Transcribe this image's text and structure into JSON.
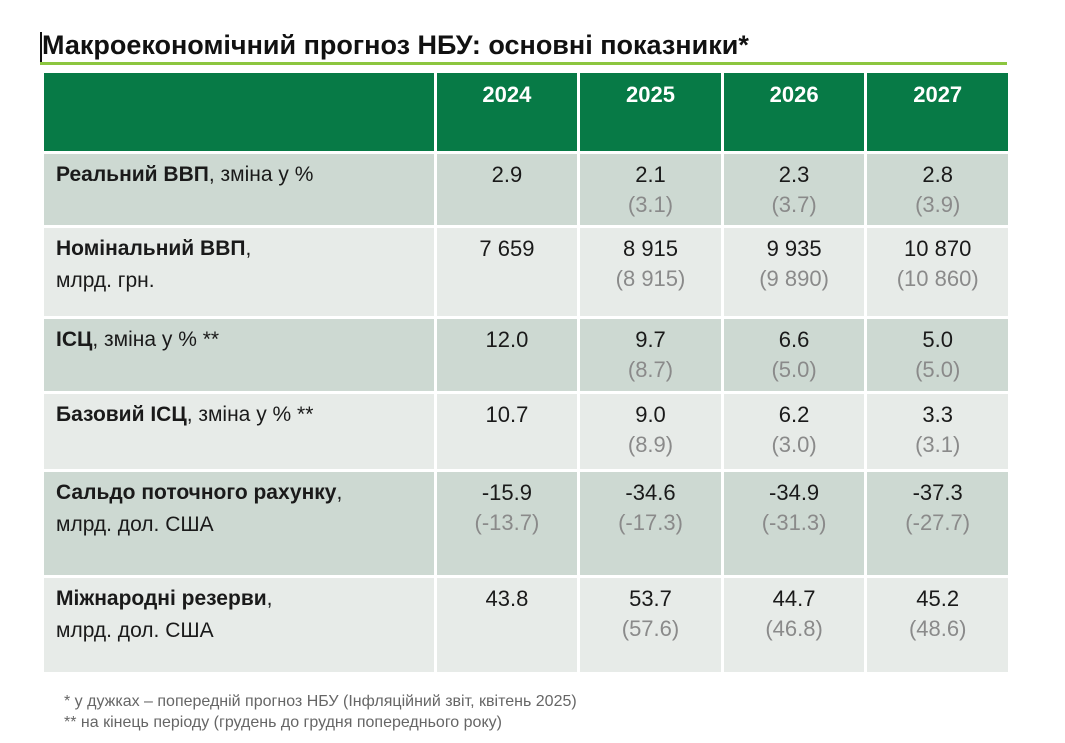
{
  "title": "Макроекономічний прогноз НБУ: основні показники*",
  "colors": {
    "header_bg": "#077a46",
    "underline": "#8cc63f",
    "row_dark": "#cdd9d2",
    "row_light": "#e7ebe8",
    "prev_text": "#8a8a8a"
  },
  "header": {
    "corner": "",
    "years": [
      "2024",
      "2025",
      "2026",
      "2027"
    ]
  },
  "rows": [
    {
      "label_bold": "Реальний ВВП",
      "label_rest": ", зміна у %",
      "label_line2": "",
      "cells": [
        {
          "main": "2.9",
          "prev": ""
        },
        {
          "main": "2.1",
          "prev": "(3.1)"
        },
        {
          "main": "2.3",
          "prev": "(3.7)"
        },
        {
          "main": "2.8",
          "prev": "(3.9)"
        }
      ]
    },
    {
      "label_bold": "Номінальний ВВП",
      "label_rest": ",",
      "label_line2": "млрд. грн.",
      "cells": [
        {
          "main": "7 659",
          "prev": ""
        },
        {
          "main": "8 915",
          "prev": "(8 915)"
        },
        {
          "main": "9 935",
          "prev": "(9 890)"
        },
        {
          "main": "10 870",
          "prev": "(10 860)"
        }
      ]
    },
    {
      "label_bold": "ІСЦ",
      "label_rest": ", зміна у % **",
      "label_line2": "",
      "cells": [
        {
          "main": "12.0",
          "prev": ""
        },
        {
          "main": "9.7",
          "prev": "(8.7)"
        },
        {
          "main": "6.6",
          "prev": "(5.0)"
        },
        {
          "main": "5.0",
          "prev": "(5.0)"
        }
      ]
    },
    {
      "label_bold": "Базовий ІСЦ",
      "label_rest": ", зміна у % **",
      "label_line2": "",
      "cells": [
        {
          "main": "10.7",
          "prev": ""
        },
        {
          "main": "9.0",
          "prev": "(8.9)"
        },
        {
          "main": "6.2",
          "prev": "(3.0)"
        },
        {
          "main": "3.3",
          "prev": "(3.1)"
        }
      ]
    },
    {
      "label_bold": "Сальдо поточного рахунку",
      "label_rest": ",",
      "label_line2": "млрд. дол. США",
      "cells": [
        {
          "main": "-15.9",
          "prev": "(-13.7)"
        },
        {
          "main": "-34.6",
          "prev": "(-17.3)"
        },
        {
          "main": "-34.9",
          "prev": "(-31.3)"
        },
        {
          "main": "-37.3",
          "prev": "(-27.7)"
        }
      ]
    },
    {
      "label_bold": "Міжнародні резерви",
      "label_rest": ",",
      "label_line2": "млрд. дол. США",
      "cells": [
        {
          "main": "43.8",
          "prev": ""
        },
        {
          "main": "53.7",
          "prev": "(57.6)"
        },
        {
          "main": "44.7",
          "prev": "(46.8)"
        },
        {
          "main": "45.2",
          "prev": "(48.6)"
        }
      ]
    }
  ],
  "footnotes": [
    "* у дужках – попередній прогноз НБУ (Інфляційний звіт, квітень 2025)",
    "** на кінець періоду (грудень до грудня попереднього року)"
  ]
}
